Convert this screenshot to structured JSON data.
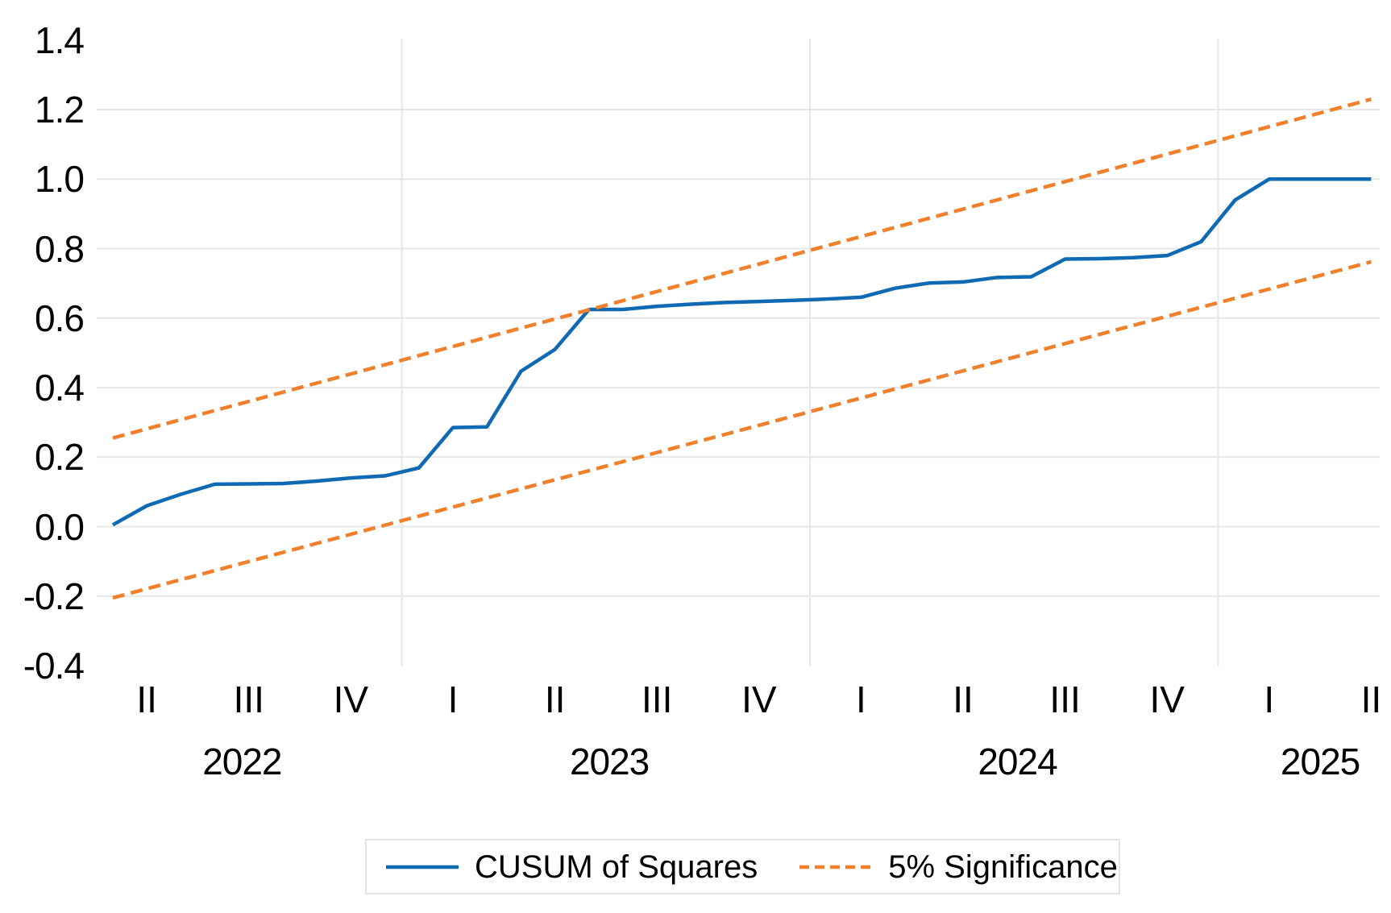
{
  "figure": {
    "kind": "statistical-test-chart",
    "background": "#ffffff"
  },
  "colors": {
    "cusum_line": "#1069b3",
    "significance_line": "#f0802c",
    "gridline": "#e7e7e7",
    "text": "#000000",
    "legend_border": "#e3e3e3"
  },
  "chart_data": {
    "type": "line",
    "title": "",
    "xlabel": "",
    "ylabel": "",
    "ylim": [
      -0.4,
      1.4
    ],
    "grid": true,
    "legend_position": "bottom",
    "x_axis": {
      "unit": "monthly observations, labeled by quarter",
      "quarter_ticks": [
        {
          "label": "II",
          "month": 1
        },
        {
          "label": "III",
          "month": 4
        },
        {
          "label": "IV",
          "month": 7
        },
        {
          "label": "I",
          "month": 10
        },
        {
          "label": "II",
          "month": 13
        },
        {
          "label": "III",
          "month": 16
        },
        {
          "label": "IV",
          "month": 19
        },
        {
          "label": "I",
          "month": 22
        },
        {
          "label": "II",
          "month": 25
        },
        {
          "label": "III",
          "month": 28
        },
        {
          "label": "IV",
          "month": 31
        },
        {
          "label": "I",
          "month": 34
        },
        {
          "label": "II",
          "month": 37
        }
      ],
      "year_labels": [
        {
          "label": "2022",
          "month": 3.8
        },
        {
          "label": "2023",
          "month": 14.6
        },
        {
          "label": "2024",
          "month": 26.6
        },
        {
          "label": "2025",
          "month": 35.5
        }
      ],
      "year_separators_month": [
        8.5,
        20.5,
        32.5
      ]
    },
    "y_axis": {
      "tick_labels": [
        "1.4",
        "1.2",
        "1.0",
        "0.8",
        "0.6",
        "0.4",
        "0.2",
        "0.0",
        "-0.2",
        "-0.4"
      ],
      "tick_values": [
        1.4,
        1.2,
        1.0,
        0.8,
        0.6,
        0.4,
        0.2,
        0.0,
        -0.2,
        -0.4
      ],
      "gridline_values": [
        1.2,
        1.0,
        0.8,
        0.6,
        0.4,
        0.2,
        0.0,
        -0.2
      ]
    },
    "series": [
      {
        "name": "CUSUM of Squares",
        "style": "solid",
        "color_key": "cusum_line",
        "month_start": 0,
        "values": [
          0.005,
          0.06,
          0.093,
          0.122,
          0.123,
          0.124,
          0.131,
          0.14,
          0.146,
          0.169,
          0.285,
          0.287,
          0.447,
          0.51,
          0.625,
          0.625,
          0.634,
          0.64,
          0.645,
          0.648,
          0.651,
          0.655,
          0.66,
          0.686,
          0.701,
          0.704,
          0.717,
          0.719,
          0.77,
          0.771,
          0.774,
          0.78,
          0.82,
          0.94,
          1.0,
          1.0,
          1.0,
          1.0
        ]
      },
      {
        "name": "5% Significance (upper bound)",
        "style": "dashed",
        "color_key": "significance_line",
        "points": [
          {
            "month": 0,
            "value": 0.255
          },
          {
            "month": 37,
            "value": 1.23
          }
        ]
      },
      {
        "name": "5% Significance (lower bound)",
        "style": "dashed",
        "color_key": "significance_line",
        "points": [
          {
            "month": 0,
            "value": -0.205
          },
          {
            "month": 37,
            "value": 0.762
          }
        ]
      }
    ]
  },
  "legend": {
    "items": [
      {
        "label": "CUSUM of Squares",
        "style": "solid",
        "color_key": "cusum_line"
      },
      {
        "label": "5% Significance",
        "style": "dashed",
        "color_key": "significance_line"
      }
    ]
  }
}
